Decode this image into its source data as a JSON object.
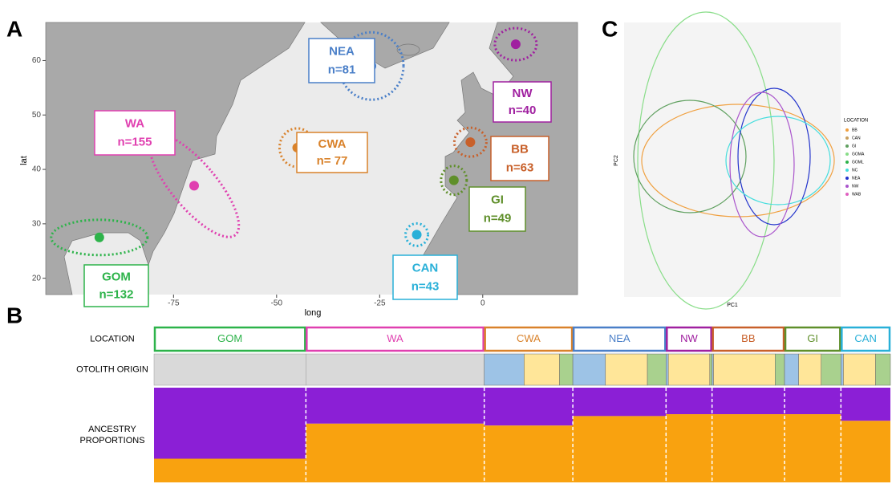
{
  "panels": [
    "A",
    "B",
    "C"
  ],
  "map": {
    "xlabel": "long",
    "ylabel": "lat",
    "xlim": [
      -106,
      23
    ],
    "ylim": [
      17,
      67
    ],
    "xticks": [
      -75,
      -50,
      -25,
      0
    ],
    "yticks": [
      20,
      30,
      40,
      50,
      60
    ],
    "regions": [
      {
        "name": "GOM",
        "label": "n=132",
        "n": 132,
        "color": "#2db34a",
        "lon": -93,
        "lat": 27.5,
        "otolith": null,
        "ancestry": 0.25
      },
      {
        "name": "WA",
        "label": "n=155",
        "n": 155,
        "color": "#e040b0",
        "lon": -70,
        "lat": 37,
        "otolith": null,
        "ancestry": 0.62
      },
      {
        "name": "CWA",
        "label": "n= 77",
        "n": 77,
        "color": "#d9822b",
        "lon": -45,
        "lat": 44,
        "otolith": [
          0.45,
          0.4,
          0.15
        ],
        "ancestry": 0.6
      },
      {
        "name": "NEA",
        "label": "n=81",
        "n": 81,
        "color": "#4a7fc8",
        "lon": -27,
        "lat": 59,
        "otolith": [
          0.35,
          0.45,
          0.2
        ],
        "ancestry": 0.7
      },
      {
        "name": "NW",
        "label": "n=40",
        "n": 40,
        "color": "#a020a0",
        "lon": 8,
        "lat": 63,
        "otolith": [
          0.05,
          0.9,
          0.05
        ],
        "ancestry": 0.72
      },
      {
        "name": "BB",
        "label": "n=63",
        "n": 63,
        "color": "#c8602a",
        "lon": -3,
        "lat": 45,
        "otolith": [
          0.02,
          0.85,
          0.13
        ],
        "ancestry": 0.72
      },
      {
        "name": "GI",
        "label": "n=49",
        "n": 49,
        "color": "#5f8f2a",
        "lon": -7,
        "lat": 38,
        "otolith": [
          0.25,
          0.4,
          0.35
        ],
        "ancestry": 0.72
      },
      {
        "name": "CAN",
        "label": "n=43",
        "n": 43,
        "color": "#29b0d8",
        "lon": -16,
        "lat": 28,
        "otolith": [
          0.05,
          0.65,
          0.3
        ],
        "ancestry": 0.65
      }
    ]
  },
  "pca": {
    "xlabel": "PC1",
    "ylabel": "PC2",
    "legend_title": "LOCATION",
    "legend": [
      "BB",
      "CAN",
      "GI",
      "GOMA",
      "GOML",
      "NC",
      "NEA",
      "NW",
      "WAB"
    ]
  },
  "structure": {
    "rows": [
      "LOCATION",
      "OTOLITH ORIGIN",
      "ANCESTRY\nPROPORTIONS"
    ]
  }
}
